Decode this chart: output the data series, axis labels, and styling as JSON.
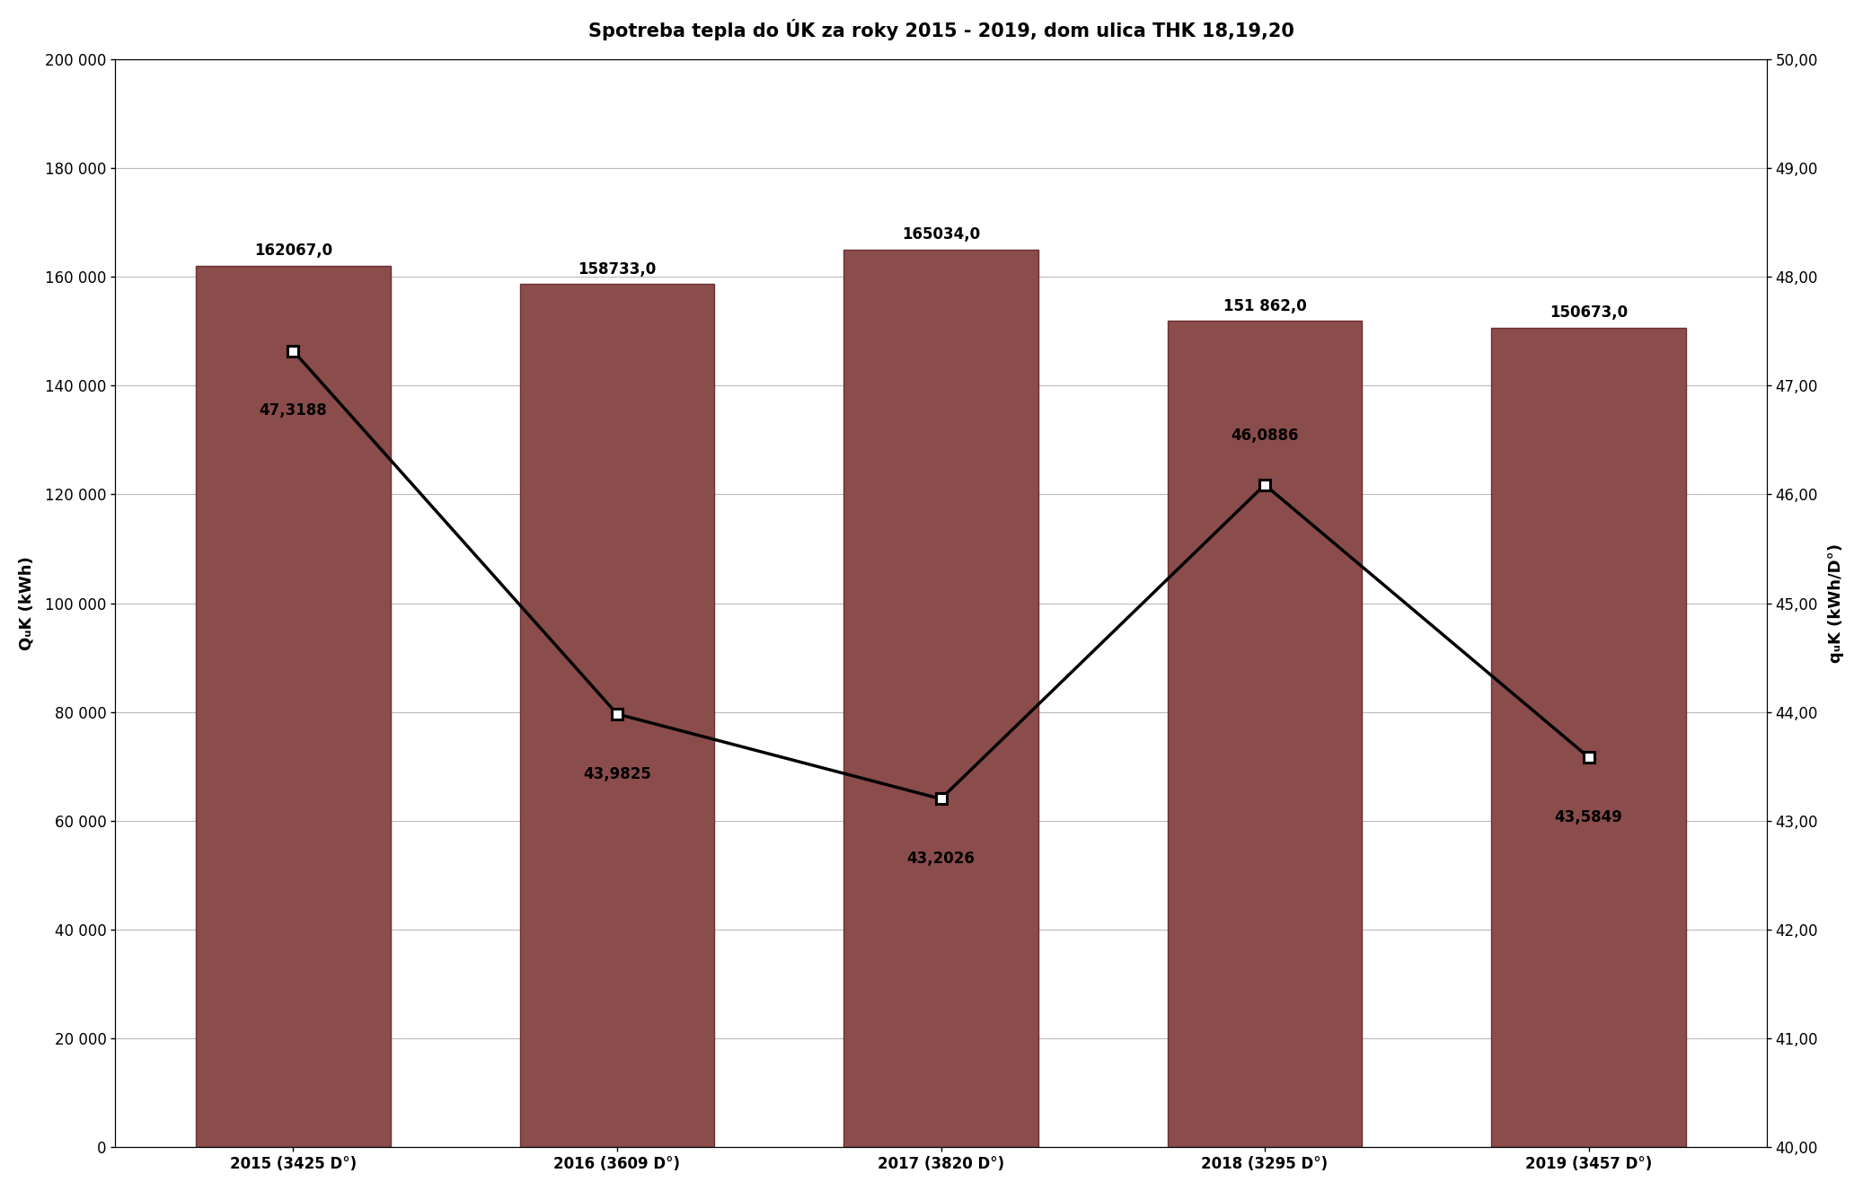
{
  "title": "Spotreba tepla do ÚK za roky 2015 - 2019, dom ulica THK 18,19,20",
  "categories": [
    "2015 (3425 D°)",
    "2016 (3609 D°)",
    "2017 (3820 D°)",
    "2018 (3295 D°)",
    "2019 (3457 D°)"
  ],
  "bar_values": [
    162067.0,
    158733.0,
    165034.0,
    151862.0,
    150673.0
  ],
  "line_values": [
    47.3188,
    43.9825,
    43.2026,
    46.0886,
    43.5849
  ],
  "bar_labels": [
    "162067,0",
    "158733,0",
    "165034,0",
    "151 862,0",
    "150673,0"
  ],
  "line_labels": [
    "47,3188",
    "43,9825",
    "43,2026",
    "46,0886",
    "43,5849"
  ],
  "bar_color": "#8B4C4C",
  "line_color": "#000000",
  "ylabel_left": "QᵤK (kWh)",
  "ylabel_right": "qᵤK (kWh/D°)",
  "ylim_left": [
    0,
    200000
  ],
  "ylim_right": [
    40.0,
    50.0
  ],
  "yticks_left": [
    0,
    20000,
    40000,
    60000,
    80000,
    100000,
    120000,
    140000,
    160000,
    180000,
    200000
  ],
  "yticks_right": [
    40.0,
    41.0,
    42.0,
    43.0,
    44.0,
    45.0,
    46.0,
    47.0,
    48.0,
    49.0,
    50.0
  ],
  "title_fontsize": 15,
  "axis_label_fontsize": 13,
  "tick_fontsize": 12,
  "annotation_fontsize": 12,
  "background_color": "#ffffff",
  "line_annotation_offsets": [
    -0.55,
    -0.55,
    -0.55,
    0.45,
    -0.55
  ]
}
